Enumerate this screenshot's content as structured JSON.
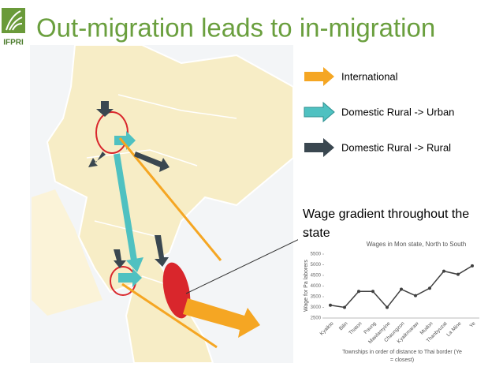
{
  "logo": "IFPRI",
  "title": "Out-migration leads to in-migration",
  "legend": [
    "International",
    "Domestic Rural -> Urban",
    "Domestic Rural -> Rural"
  ],
  "callout": "Wage gradient throughout the state",
  "chart_data": {
    "type": "line",
    "title": "Wages in Mon state, North to South",
    "y_label": "Wage for Pa laborers",
    "x_label": "Townships in order of distance to Thai border (Ye = closest)",
    "categories": [
      "Kyaikto",
      "Bilin",
      "Thaton",
      "Paung",
      "Mawlamyine",
      "Chaungzon",
      "Kyaikmaraw",
      "Mudon",
      "Thanbyuzat",
      "La Mine",
      "Ye"
    ],
    "values": [
      3100,
      3000,
      3750,
      3750,
      3000,
      3850,
      3550,
      3900,
      4700,
      4550,
      4950
    ],
    "color": "#404040",
    "ylim": [
      2500,
      5500
    ],
    "yticks": [
      2500,
      3000,
      3500,
      4000,
      4500,
      5000,
      5500
    ]
  }
}
